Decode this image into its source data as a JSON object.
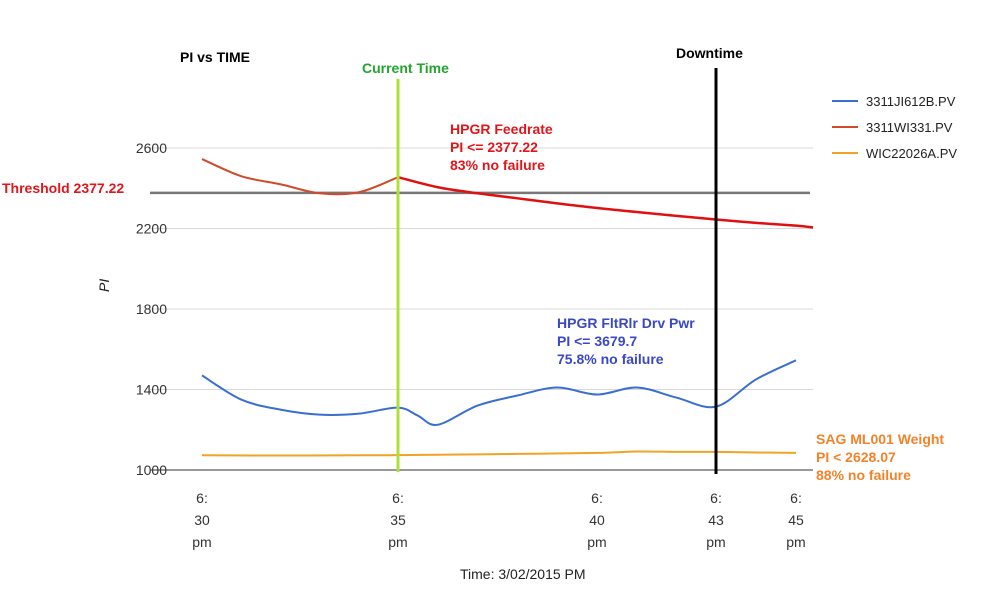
{
  "chart_data": {
    "type": "line",
    "title": "PI vs TIME",
    "xlabel": "Time: 3/02/2015 PM",
    "ylabel": "PI",
    "ylim": [
      1000,
      2800
    ],
    "yticks": [
      1000,
      1400,
      1800,
      2200,
      2600
    ],
    "xlim": [
      30,
      45.5
    ],
    "xticks": [
      {
        "value": 30,
        "label": [
          "6:",
          "30",
          "pm"
        ]
      },
      {
        "value": 35,
        "label": [
          "6:",
          "35",
          "pm"
        ]
      },
      {
        "value": 40,
        "label": [
          "6:",
          "40",
          "pm"
        ]
      },
      {
        "value": 43,
        "label": [
          "6:",
          "43",
          "pm"
        ]
      },
      {
        "value": 45,
        "label": [
          "6:",
          "45",
          "pm"
        ]
      }
    ],
    "grid": true,
    "legend_position": "right",
    "series": [
      {
        "name": "3311JI612B.PV",
        "color": "#3a6fd1",
        "x": [
          30,
          31,
          32,
          33,
          34,
          35,
          35.5,
          36,
          37,
          38,
          39,
          40,
          41,
          42,
          43,
          44,
          45
        ],
        "y": [
          1470,
          1350,
          1300,
          1275,
          1280,
          1310,
          1270,
          1225,
          1320,
          1370,
          1410,
          1375,
          1410,
          1360,
          1315,
          1450,
          1545
        ]
      },
      {
        "name": "3311WI331.PV",
        "color": "#d04a2c",
        "x": [
          30,
          31,
          32,
          33,
          34,
          35
        ],
        "y": [
          2545,
          2460,
          2420,
          2375,
          2380,
          2455
        ]
      },
      {
        "name": "3311WI331.PV forecast",
        "color": "#e01010",
        "legend": false,
        "x": [
          35,
          36,
          37,
          38,
          39,
          40,
          41,
          42,
          43,
          44,
          45,
          45.5
        ],
        "y": [
          2455,
          2405,
          2375,
          2350,
          2325,
          2302,
          2282,
          2263,
          2245,
          2228,
          2214,
          2205
        ]
      },
      {
        "name": "WIC22026A.PV",
        "color": "#f2a227",
        "x": [
          30,
          32,
          34,
          35,
          36,
          38,
          40,
          41,
          42,
          43,
          44,
          45
        ],
        "y": [
          1073,
          1072,
          1073,
          1074,
          1076,
          1080,
          1085,
          1092,
          1090,
          1090,
          1087,
          1085
        ]
      }
    ],
    "reference_lines": [
      {
        "orientation": "horizontal",
        "value": 2377.22,
        "color": "#777777",
        "label": "Threshold 2377.22",
        "label_color": "#e0161b"
      },
      {
        "orientation": "vertical",
        "value": 35,
        "color": "#aee03a",
        "label": "Current Time",
        "label_color": "#23a52d"
      },
      {
        "orientation": "vertical",
        "value": 43,
        "color": "#000000",
        "label": "Downtime",
        "label_color": "#000000"
      }
    ],
    "annotations": [
      {
        "lines": [
          "HPGR  Feedrate",
          "PI <= 2377.22",
          "83% no failure"
        ],
        "color": "#e0161b"
      },
      {
        "lines": [
          "HPGR FltRlr Drv Pwr",
          "PI <= 3679.7",
          "75.8% no failure"
        ],
        "color": "#3b48c4"
      },
      {
        "lines": [
          "SAG ML001 Weight",
          "PI < 2628.07",
          "88% no failure"
        ],
        "color": "#f2832a"
      }
    ]
  }
}
